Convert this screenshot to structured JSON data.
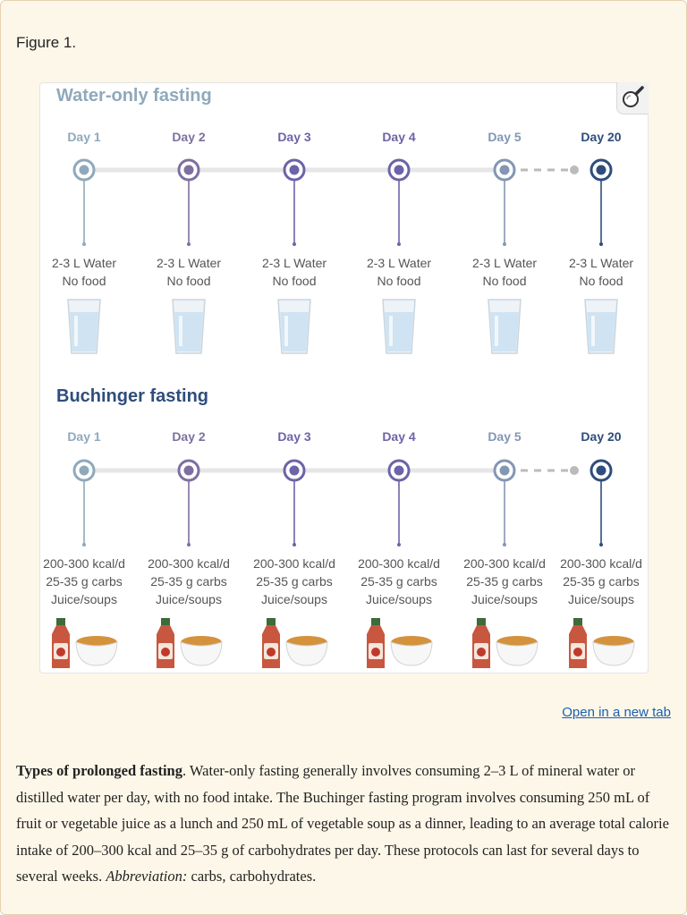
{
  "figure_label": "Figure 1.",
  "open_link": "Open in a new tab",
  "water": {
    "title": "Water-only fasting",
    "days": [
      "Day 1",
      "Day 2",
      "Day 3",
      "Day 4",
      "Day 5",
      "Day 20"
    ],
    "line1": "2-3 L Water",
    "line2": "No food"
  },
  "buchinger": {
    "title": "Buchinger fasting",
    "days": [
      "Day 1",
      "Day 2",
      "Day 3",
      "Day 4",
      "Day 5",
      "Day 20"
    ],
    "line1": "200-300 kcal/d",
    "line2": "25-35 g carbs",
    "line3": "Juice/soups"
  },
  "day_colors": [
    "#8fa9bb",
    "#7d70a0",
    "#6c64a8",
    "#6c64a8",
    "#8396b4",
    "#2f4d7c"
  ],
  "caption": {
    "bold": "Types of prolonged fasting",
    "text": ". Water-only fasting generally involves consuming 2–3 L of mineral water or distilled water per day, with no food intake. The Buchinger fasting program involves consuming 250 mL of fruit or vegetable juice as a lunch and 250 mL of vegetable soup as a dinner, leading to an average total calorie intake of 200–300 kcal and 25–35 g of carbohydrates per day. These protocols can last for several days to several weeks. ",
    "abbr_label": "Abbreviation:",
    "abbr_text": " carbs, carbohydrates."
  }
}
